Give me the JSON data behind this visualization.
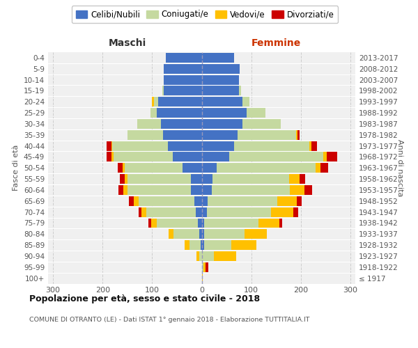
{
  "age_groups": [
    "100+",
    "95-99",
    "90-94",
    "85-89",
    "80-84",
    "75-79",
    "70-74",
    "65-69",
    "60-64",
    "55-59",
    "50-54",
    "45-49",
    "40-44",
    "35-39",
    "30-34",
    "25-29",
    "20-24",
    "15-19",
    "10-14",
    "5-9",
    "0-4"
  ],
  "birth_years": [
    "≤ 1917",
    "1918-1922",
    "1923-1927",
    "1928-1932",
    "1933-1937",
    "1938-1942",
    "1943-1947",
    "1948-1952",
    "1953-1957",
    "1958-1962",
    "1963-1967",
    "1968-1972",
    "1973-1977",
    "1978-1982",
    "1983-1987",
    "1988-1992",
    "1993-1997",
    "1998-2002",
    "2003-2007",
    "2008-2012",
    "2013-2017"
  ],
  "colors": {
    "celibi": "#4472c4",
    "coniugati": "#c5d9a0",
    "vedovi": "#ffc000",
    "divorziati": "#cc0000"
  },
  "maschi": {
    "celibi": [
      0,
      0,
      0,
      2,
      5,
      8,
      12,
      15,
      22,
      22,
      38,
      58,
      68,
      78,
      82,
      90,
      88,
      76,
      76,
      76,
      72
    ],
    "coniugati": [
      0,
      0,
      5,
      22,
      52,
      82,
      100,
      112,
      128,
      128,
      118,
      120,
      112,
      72,
      48,
      14,
      8,
      4,
      0,
      0,
      0
    ],
    "vedovi": [
      0,
      0,
      5,
      10,
      10,
      12,
      10,
      10,
      8,
      5,
      4,
      4,
      2,
      0,
      0,
      0,
      5,
      0,
      0,
      0,
      0
    ],
    "divorziati": [
      0,
      0,
      0,
      0,
      0,
      5,
      5,
      10,
      10,
      10,
      10,
      10,
      10,
      0,
      0,
      0,
      0,
      0,
      0,
      0,
      0
    ]
  },
  "femmine": {
    "celibi": [
      0,
      0,
      0,
      5,
      5,
      5,
      10,
      12,
      20,
      22,
      30,
      55,
      65,
      72,
      82,
      90,
      82,
      75,
      75,
      76,
      65
    ],
    "coniugati": [
      0,
      3,
      25,
      55,
      82,
      110,
      130,
      140,
      158,
      155,
      200,
      190,
      152,
      118,
      78,
      38,
      15,
      5,
      0,
      0,
      0
    ],
    "vedovi": [
      2,
      5,
      45,
      50,
      45,
      42,
      45,
      40,
      30,
      20,
      10,
      8,
      5,
      3,
      0,
      0,
      0,
      0,
      0,
      0,
      0
    ],
    "divorziati": [
      0,
      5,
      0,
      0,
      0,
      5,
      10,
      10,
      15,
      12,
      15,
      20,
      10,
      5,
      0,
      0,
      0,
      0,
      0,
      0,
      0
    ]
  },
  "title1": "Popolazione per età, sesso e stato civile - 2018",
  "title2": "COMUNE DI OTRANTO (LE) - Dati ISTAT 1° gennaio 2018 - Elaborazione TUTTITALIA.IT",
  "xlabel_maschi": "Maschi",
  "xlabel_femmine": "Femmine",
  "ylabel_left": "Fasce di età",
  "ylabel_right": "Anni di nascita",
  "xlim": 310,
  "plot_bg": "#f0f0f0",
  "grid_color": "#cccccc",
  "legend_labels": [
    "Celibi/Nubili",
    "Coniugati/e",
    "Vedovi/e",
    "Divorziati/e"
  ]
}
